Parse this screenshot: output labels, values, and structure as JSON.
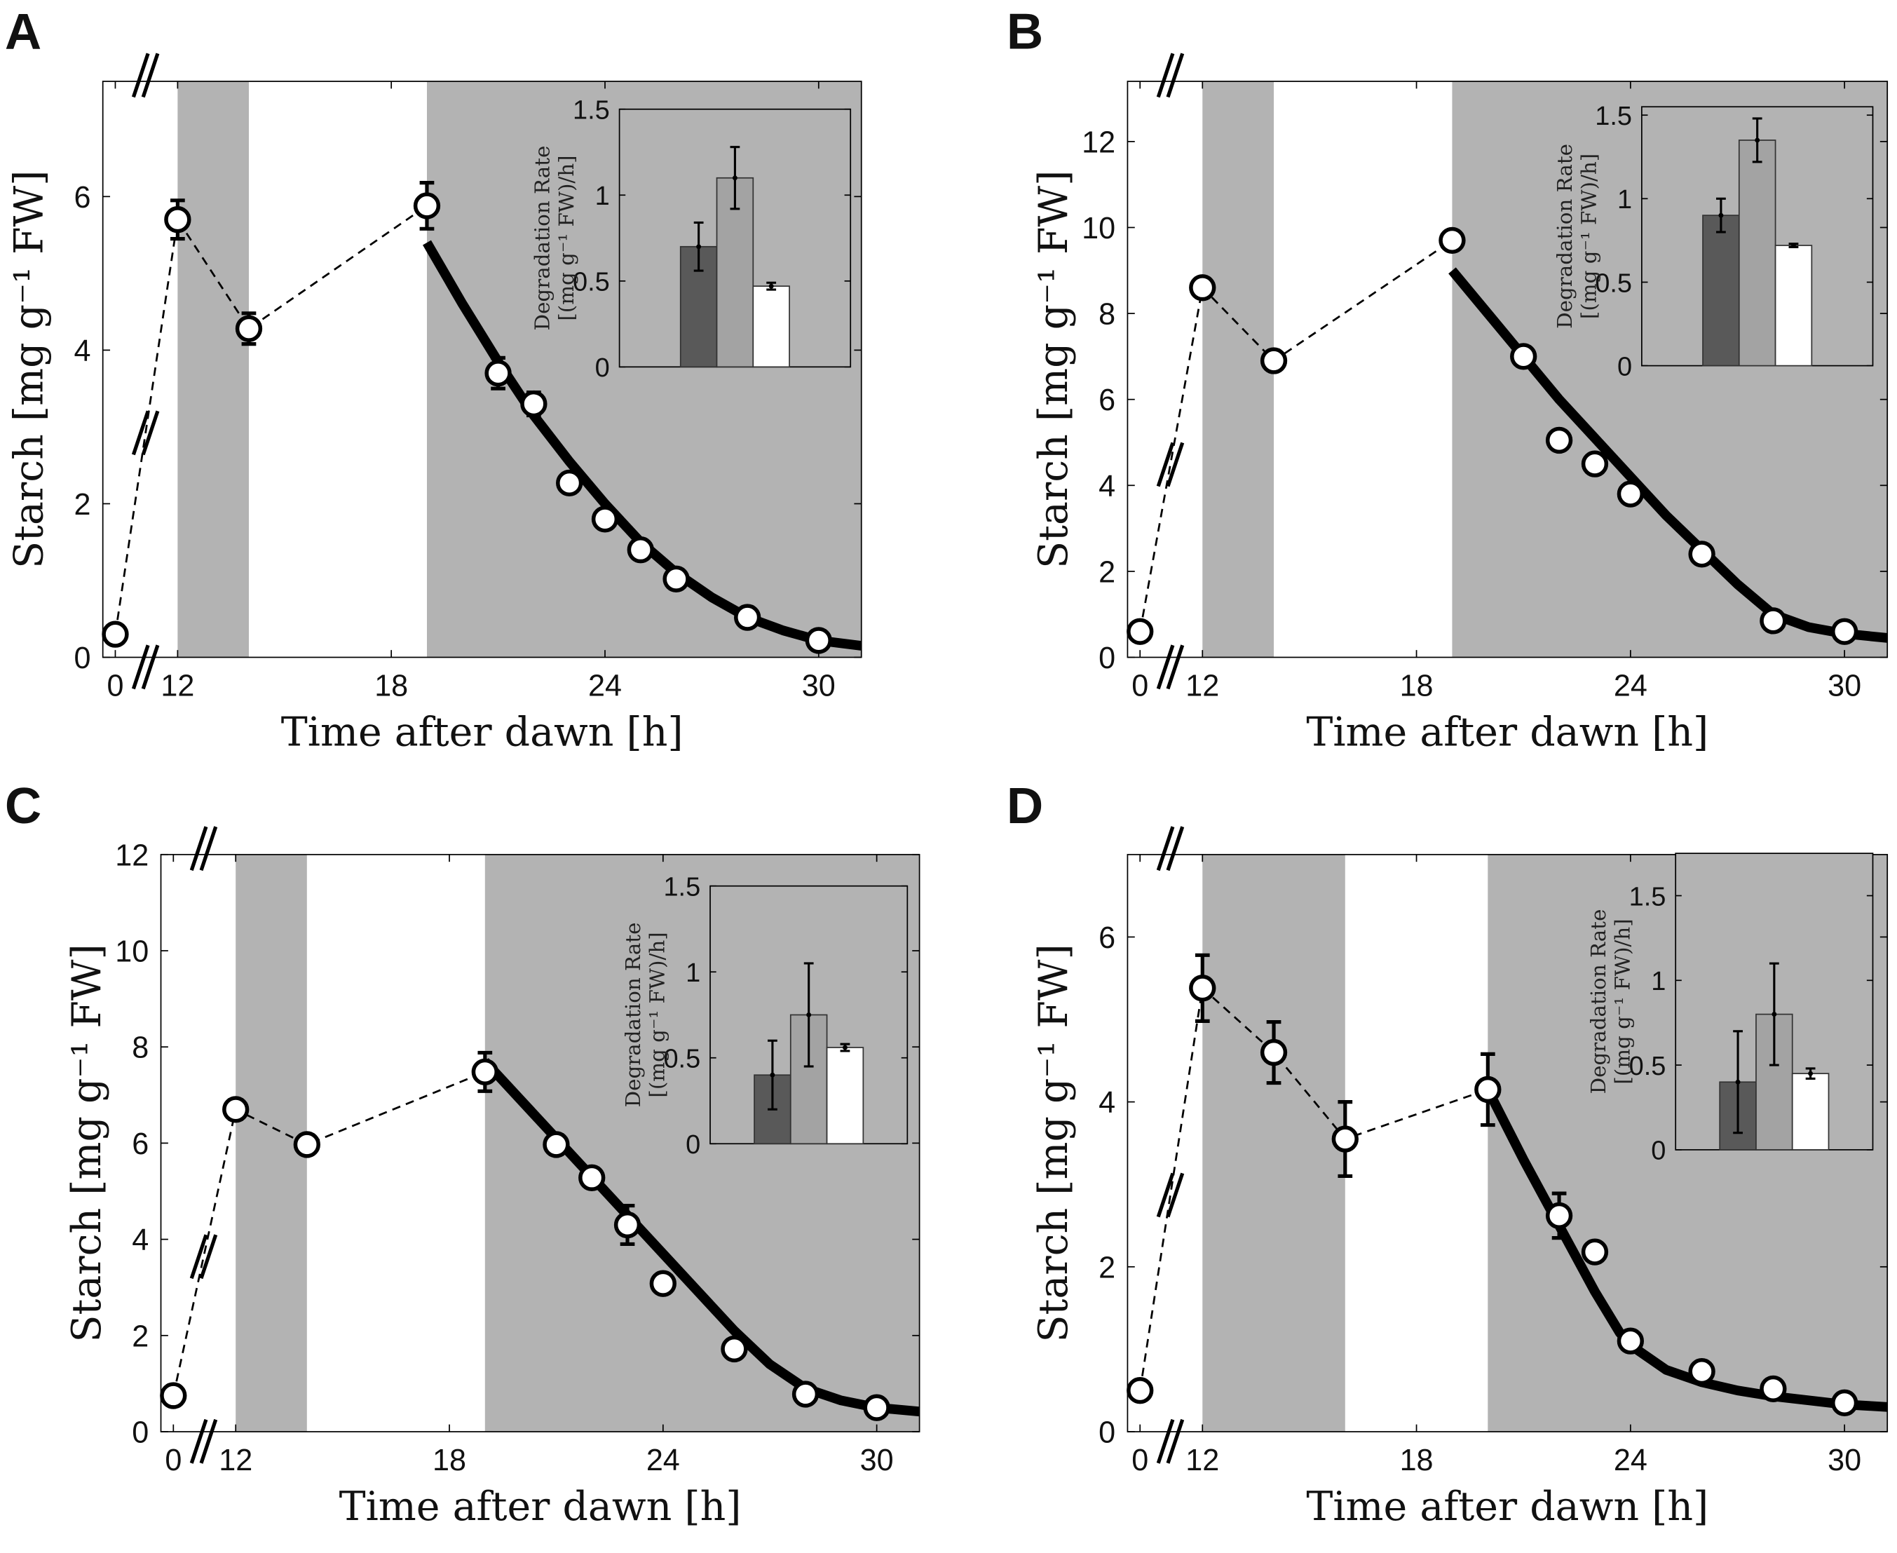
{
  "chart_data": [
    {
      "panel": "A",
      "type": "scatter",
      "xlabel": "Time after dawn [h]",
      "ylabel": "Starch [mg g⁻¹ FW]",
      "xticks": [
        0,
        12,
        18,
        24,
        30
      ],
      "yticks": [
        0,
        2,
        4,
        6
      ],
      "ylim": [
        0,
        7.5
      ],
      "xaxis_break": "between 0 and 12",
      "dark_periods": [
        [
          12,
          14
        ],
        [
          19,
          31.2
        ]
      ],
      "measured": {
        "x": [
          0,
          12,
          14,
          19,
          21,
          22,
          23,
          24,
          25,
          26,
          28,
          30
        ],
        "y": [
          0.3,
          5.7,
          4.28,
          5.88,
          3.7,
          3.3,
          2.27,
          1.8,
          1.4,
          1.02,
          0.52,
          0.22
        ],
        "err": [
          0,
          0.25,
          0.2,
          0.3,
          0.2,
          0.15,
          0,
          0,
          0,
          0,
          0,
          0
        ]
      },
      "dashed_connect_count": 4,
      "fit": {
        "x": [
          19,
          20,
          21,
          22,
          23,
          24,
          25,
          26,
          27,
          28,
          29,
          30,
          31.2
        ],
        "y": [
          5.4,
          4.6,
          3.85,
          3.15,
          2.55,
          2.0,
          1.5,
          1.1,
          0.78,
          0.52,
          0.35,
          0.22,
          0.15
        ]
      },
      "inset": {
        "type": "bar",
        "ylabel_line1": "Degradation Rate",
        "ylabel_line2": "[(mg g⁻¹ FW)/h]",
        "yticks": [
          "0",
          "0.5",
          "1",
          "1.5"
        ],
        "ylim": [
          0,
          1.5
        ],
        "values": [
          0.7,
          1.1,
          0.47
        ],
        "err": [
          0.14,
          0.18,
          0.02
        ],
        "colors": [
          "#595959",
          "#a3a3a3",
          "#ffffff"
        ]
      }
    },
    {
      "panel": "B",
      "type": "scatter",
      "xlabel": "Time after dawn [h]",
      "ylabel": "Starch [mg g⁻¹ FW]",
      "xticks": [
        0,
        12,
        18,
        24,
        30
      ],
      "yticks": [
        0,
        2,
        4,
        6,
        8,
        10,
        12
      ],
      "ylim": [
        0,
        13.4
      ],
      "xaxis_break": "between 0 and 12",
      "dark_periods": [
        [
          12,
          14
        ],
        [
          19,
          31.2
        ]
      ],
      "measured": {
        "x": [
          0,
          12,
          14,
          19,
          21,
          22,
          23,
          24,
          26,
          28,
          30
        ],
        "y": [
          0.6,
          8.6,
          6.9,
          9.7,
          7.0,
          5.05,
          4.5,
          3.8,
          2.4,
          0.85,
          0.6
        ],
        "err": [
          0,
          0,
          0,
          0,
          0,
          0,
          0,
          0,
          0,
          0,
          0
        ]
      },
      "dashed_connect_count": 4,
      "fit": {
        "x": [
          19,
          20,
          21,
          22,
          23,
          24,
          25,
          26,
          27,
          28,
          29,
          30,
          31.2
        ],
        "y": [
          9.0,
          8.0,
          7.0,
          6.0,
          5.1,
          4.2,
          3.3,
          2.5,
          1.7,
          1.0,
          0.7,
          0.55,
          0.45
        ]
      },
      "inset": {
        "type": "bar",
        "ylabel_line1": "Degradation Rate",
        "ylabel_line2": "[(mg g⁻¹ FW)/h]",
        "yticks": [
          "0",
          "0.5",
          "1",
          "1.5"
        ],
        "ylim": [
          0,
          1.55
        ],
        "values": [
          0.9,
          1.35,
          0.72
        ],
        "err": [
          0.1,
          0.13,
          0.01
        ],
        "colors": [
          "#595959",
          "#a3a3a3",
          "#ffffff"
        ]
      }
    },
    {
      "panel": "C",
      "type": "scatter",
      "xlabel": "Time after dawn [h]",
      "ylabel": "Starch [mg g⁻¹ FW]",
      "xticks": [
        0,
        12,
        18,
        24,
        30
      ],
      "yticks": [
        0,
        2,
        4,
        6,
        8,
        10,
        12
      ],
      "ylim": [
        0,
        12
      ],
      "xaxis_break": "between 0 and 12",
      "dark_periods": [
        [
          12,
          14
        ],
        [
          19,
          31.2
        ]
      ],
      "measured": {
        "x": [
          0,
          12,
          14,
          19,
          21,
          22,
          23,
          24,
          26,
          28,
          30
        ],
        "y": [
          0.75,
          6.7,
          5.97,
          7.48,
          5.97,
          5.28,
          4.3,
          3.08,
          1.72,
          0.78,
          0.5
        ],
        "err": [
          0,
          0.2,
          0,
          0.4,
          0.2,
          0,
          0.4,
          0,
          0,
          0,
          0
        ]
      },
      "dashed_connect_count": 4,
      "fit": {
        "x": [
          19,
          20,
          21,
          22,
          23,
          24,
          25,
          26,
          27,
          28,
          29,
          30,
          31.2
        ],
        "y": [
          7.7,
          6.9,
          6.1,
          5.3,
          4.5,
          3.7,
          2.9,
          2.1,
          1.4,
          0.9,
          0.65,
          0.5,
          0.42
        ]
      },
      "inset": {
        "type": "bar",
        "ylabel_line1": "Degradation Rate",
        "ylabel_line2": "[(mg g⁻¹ FW)/h]",
        "yticks": [
          "0",
          "0.5",
          "1",
          "1.5"
        ],
        "ylim": [
          0,
          1.5
        ],
        "values": [
          0.4,
          0.75,
          0.56
        ],
        "err": [
          0.2,
          0.3,
          0.02
        ],
        "colors": [
          "#595959",
          "#a3a3a3",
          "#ffffff"
        ]
      }
    },
    {
      "panel": "D",
      "type": "scatter",
      "xlabel": "Time after dawn [h]",
      "ylabel": "Starch [mg g⁻¹ FW]",
      "xticks": [
        0,
        12,
        18,
        24,
        30
      ],
      "yticks": [
        0,
        2,
        4,
        6
      ],
      "ylim": [
        0,
        7
      ],
      "xaxis_break": "between 0 and 12",
      "dark_periods": [
        [
          12,
          16
        ],
        [
          20,
          31.2
        ]
      ],
      "measured": {
        "x": [
          0,
          12,
          14,
          16,
          20,
          22,
          23,
          24,
          26,
          28,
          30
        ],
        "y": [
          0.5,
          5.38,
          4.6,
          3.55,
          4.15,
          2.62,
          2.18,
          1.1,
          0.73,
          0.52,
          0.35
        ],
        "err": [
          0,
          0.4,
          0.37,
          0.45,
          0.43,
          0.27,
          0,
          0,
          0,
          0,
          0
        ]
      },
      "dashed_connect_count": 5,
      "fit": {
        "x": [
          20,
          21,
          22,
          23,
          23.7,
          24,
          25,
          26,
          27,
          28,
          29,
          30,
          31.2
        ],
        "y": [
          4.15,
          3.3,
          2.5,
          1.7,
          1.2,
          1.05,
          0.75,
          0.6,
          0.5,
          0.43,
          0.38,
          0.33,
          0.3
        ]
      },
      "inset": {
        "type": "bar",
        "ylabel_line1": "Degradation Rate",
        "ylabel_line2": "[(mg g⁻¹ FW)/h]",
        "yticks": [
          "0",
          "0.5",
          "1",
          "1.5"
        ],
        "ylim": [
          0,
          1.75
        ],
        "values": [
          0.4,
          0.8,
          0.45
        ],
        "err": [
          0.3,
          0.3,
          0.03
        ],
        "colors": [
          "#595959",
          "#a3a3a3",
          "#ffffff"
        ]
      }
    }
  ],
  "style": {
    "dark_shade": "#b3b3b3",
    "marker_fill": "#ffffff",
    "line_color": "#000000"
  }
}
